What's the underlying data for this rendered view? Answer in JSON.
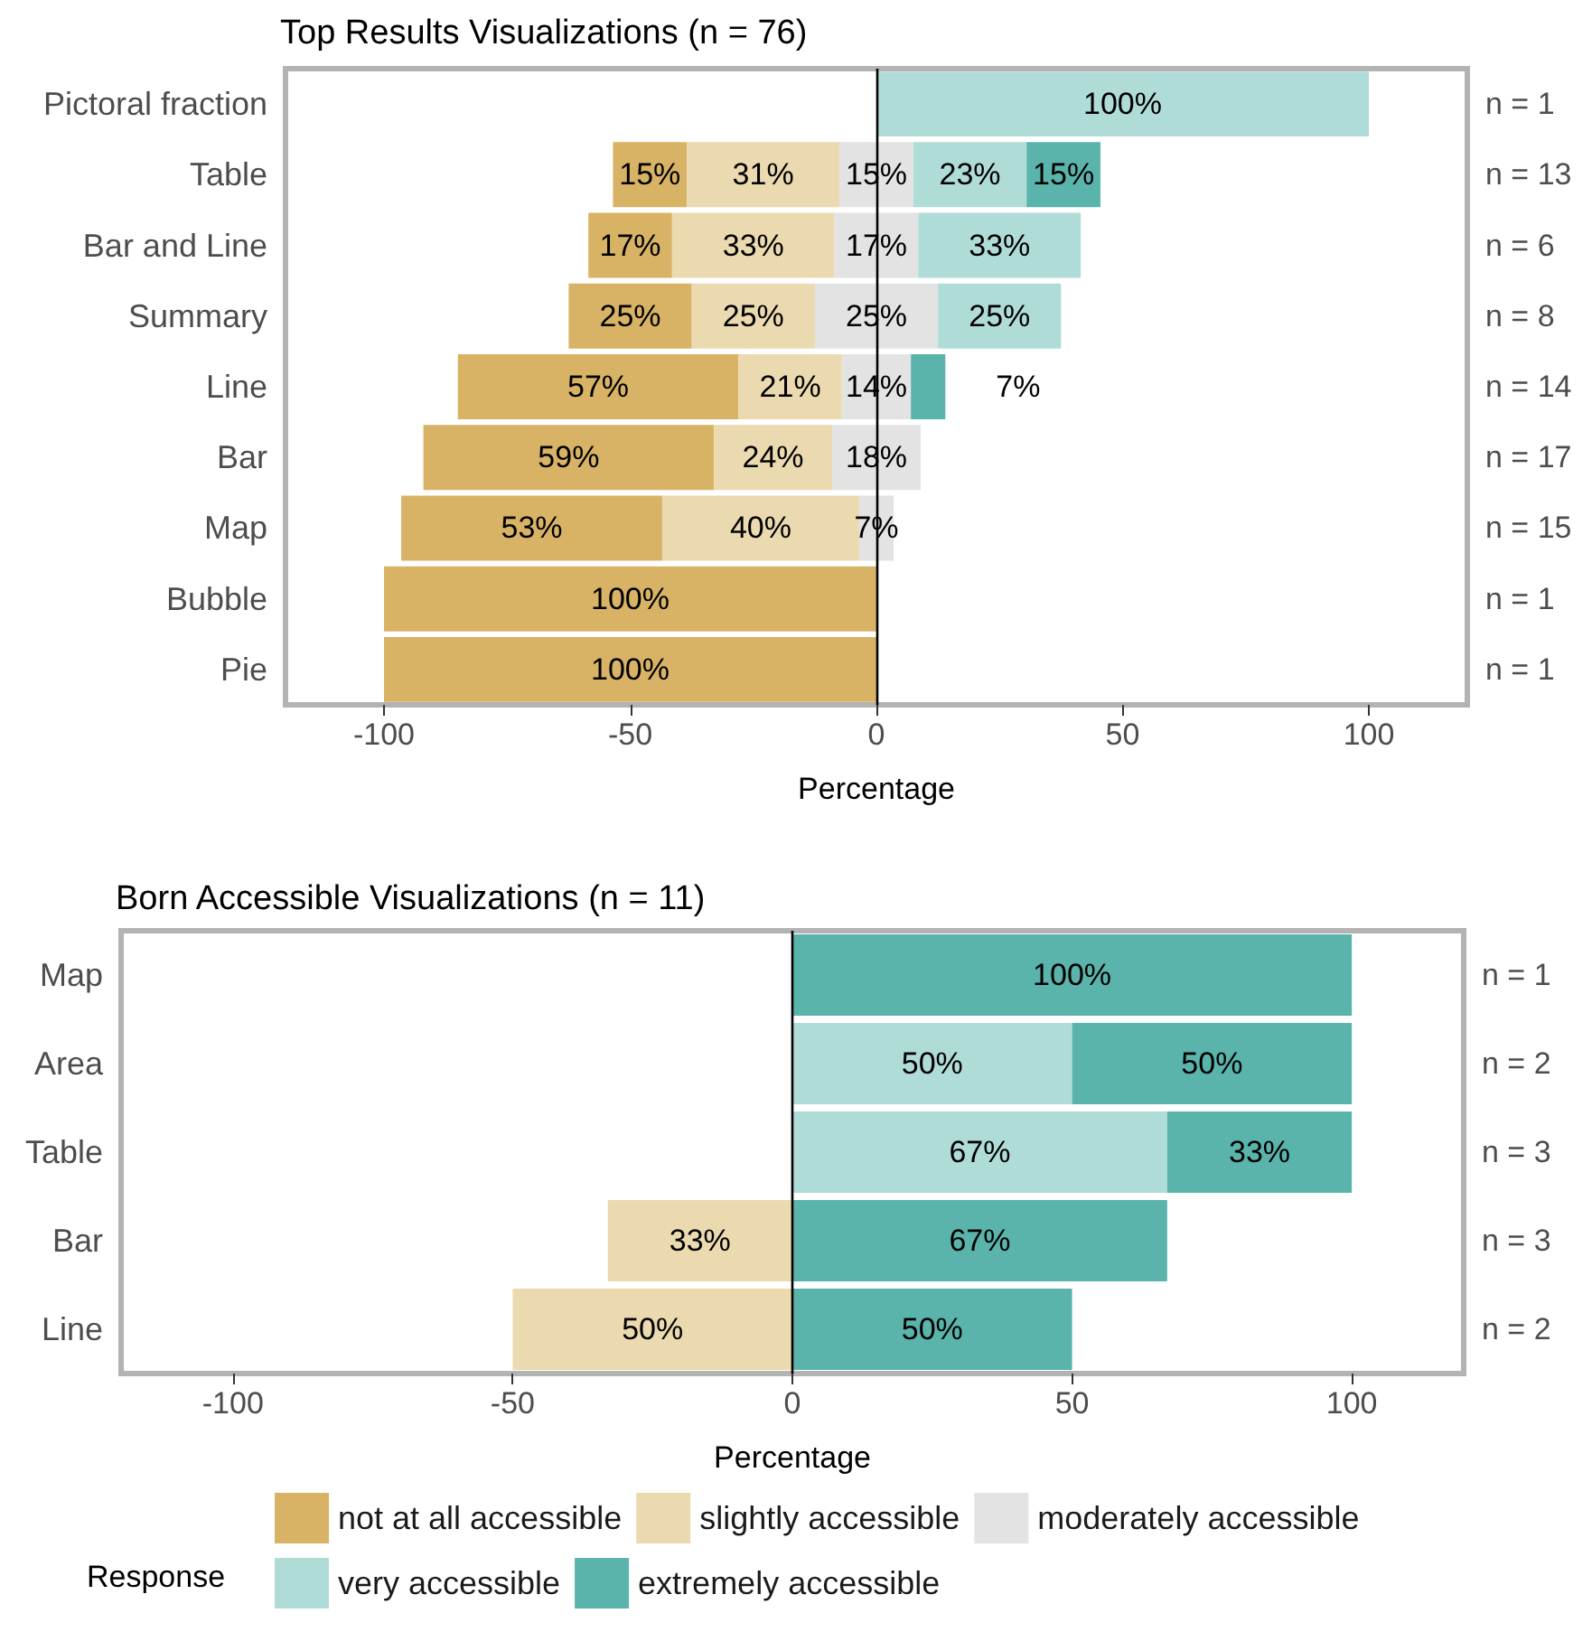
{
  "chart_data": [
    {
      "type": "bar",
      "title": "Top Results Visualizations (n = 76)",
      "xlabel": "Percentage",
      "orientation": "horizontal",
      "categories": [
        "Pictoral fraction",
        "Table",
        "Bar and Line",
        "Summary",
        "Line",
        "Bar",
        "Map",
        "Bubble",
        "Pie"
      ],
      "xlim": [
        -120,
        120
      ],
      "xticks": [
        -100,
        -50,
        0,
        50,
        100
      ],
      "grid": false,
      "legend": false,
      "series": [
        {
          "color": "#d8b365",
          "values": [
            null,
            15,
            17,
            25,
            57,
            59,
            53,
            100,
            100
          ],
          "base": [
            null,
            -53.5,
            -58.5,
            -62.5,
            -85,
            -92,
            -96.5,
            -100,
            -100
          ],
          "value_labels": [
            null,
            "15%",
            "17%",
            "25%",
            "57%",
            "59%",
            "53%",
            "100%",
            "100%"
          ]
        },
        {
          "color": "#ebd9b0",
          "values": [
            null,
            31,
            33,
            25,
            21,
            24,
            40,
            null,
            null
          ],
          "base": [
            null,
            -38.5,
            -41.5,
            -37.5,
            -28,
            -33,
            -43.5,
            null,
            null
          ],
          "value_labels": [
            null,
            "31%",
            "33%",
            "25%",
            "21%",
            "24%",
            "40%",
            null,
            null
          ]
        },
        {
          "color": "#e3e3e3",
          "values": [
            null,
            15,
            17,
            25,
            14,
            18,
            7,
            null,
            null
          ],
          "base": [
            null,
            -7.5,
            -8.5,
            -12.5,
            -7,
            -9,
            -3.5,
            null,
            null
          ],
          "value_labels": [
            null,
            "15%",
            "17%",
            "25%",
            "14%",
            "18%",
            "7%",
            null,
            null
          ]
        },
        {
          "color": "#b0dcd8",
          "values": [
            100,
            23,
            33,
            25,
            null,
            null,
            null,
            null,
            null
          ],
          "base": [
            0,
            7.5,
            8.5,
            12.5,
            null,
            null,
            null,
            null,
            null
          ],
          "value_labels": [
            "100%",
            "23%",
            "33%",
            "25%",
            null,
            null,
            null,
            null,
            null
          ]
        },
        {
          "color": "#5ab4ac",
          "values": [
            null,
            15,
            null,
            null,
            7,
            null,
            null,
            null,
            null
          ],
          "base": [
            null,
            30.5,
            null,
            null,
            7,
            null,
            null,
            null,
            null
          ],
          "value_labels": [
            null,
            "15%",
            null,
            null,
            "7%",
            null,
            null,
            null,
            null
          ]
        }
      ],
      "ref_lines": [
        {
          "axis": "x",
          "value": 0,
          "color": "#000000"
        }
      ],
      "annotations": [
        "n = 1",
        "n = 13",
        "n = 6",
        "n = 8",
        "n = 14",
        "n = 17",
        "n = 15",
        "n = 1",
        "n = 1"
      ]
    },
    {
      "type": "bar",
      "title": "Born Accessible Visualizations (n = 11)",
      "xlabel": "Percentage",
      "orientation": "horizontal",
      "categories": [
        "Map",
        "Area",
        "Table",
        "Bar",
        "Line"
      ],
      "xlim": [
        -120,
        120
      ],
      "xticks": [
        -100,
        -50,
        0,
        50,
        100
      ],
      "grid": false,
      "legend": "bottom",
      "legend_title": "Response",
      "series": [
        {
          "name": "not at all accessible",
          "color": "#d8b365",
          "values": [
            null,
            null,
            null,
            null,
            null
          ],
          "base": [
            null,
            null,
            null,
            null,
            null
          ],
          "value_labels": [
            null,
            null,
            null,
            null,
            null
          ]
        },
        {
          "name": "slightly accessible",
          "color": "#ebd9b0",
          "values": [
            null,
            null,
            null,
            33,
            50
          ],
          "base": [
            null,
            null,
            null,
            -33,
            -50
          ],
          "value_labels": [
            null,
            null,
            null,
            "33%",
            "50%"
          ]
        },
        {
          "name": "moderately accessible",
          "color": "#e3e3e3",
          "values": [
            null,
            null,
            null,
            null,
            null
          ],
          "base": [
            null,
            null,
            null,
            null,
            null
          ],
          "value_labels": [
            null,
            null,
            null,
            null,
            null
          ]
        },
        {
          "name": "very accessible",
          "color": "#b0dcd8",
          "values": [
            null,
            50,
            67,
            null,
            null
          ],
          "base": [
            null,
            0,
            0,
            null,
            null
          ],
          "value_labels": [
            null,
            "50%",
            "67%",
            null,
            null
          ]
        },
        {
          "name": "extremely accessible",
          "color": "#5ab4ac",
          "values": [
            100,
            50,
            33,
            67,
            50
          ],
          "base": [
            0,
            50,
            67,
            0,
            0
          ],
          "value_labels": [
            "100%",
            "50%",
            "33%",
            "67%",
            "50%"
          ]
        }
      ],
      "ref_lines": [
        {
          "axis": "x",
          "value": 0,
          "color": "#000000"
        }
      ],
      "annotations": [
        "n = 1",
        "n = 2",
        "n = 3",
        "n = 3",
        "n = 2"
      ]
    }
  ]
}
